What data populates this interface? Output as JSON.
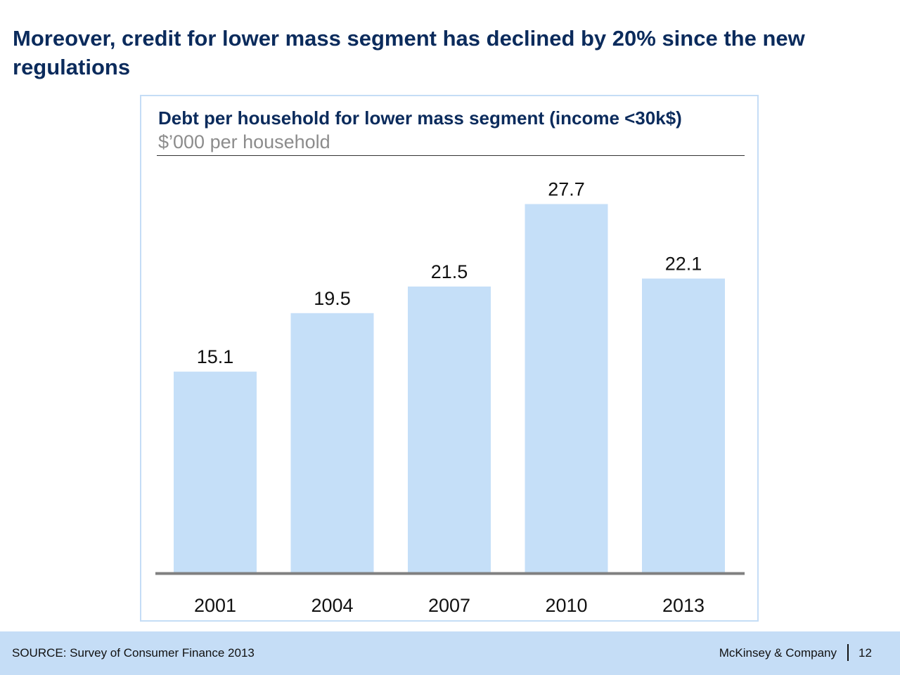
{
  "slide": {
    "title": "Moreover, credit for lower mass segment has declined by 20% since the new regulations"
  },
  "chart_data": {
    "type": "bar",
    "title": "Debt per household for lower mass segment (income <30k$)",
    "subtitle": "$’000 per household",
    "categories": [
      "2001",
      "2004",
      "2007",
      "2010",
      "2013"
    ],
    "values": [
      15.1,
      19.5,
      21.5,
      27.7,
      22.1
    ],
    "value_labels": [
      "15.1",
      "19.5",
      "21.5",
      "27.7",
      "22.1"
    ],
    "xlabel": "",
    "ylabel": "",
    "ylim": [
      0,
      30
    ],
    "grid": false,
    "legend": "none",
    "bar_color": "#c5dff8",
    "axis_color": "#808080"
  },
  "footer": {
    "source": "SOURCE: Survey of Consumer Finance 2013",
    "brand": "McKinsey & Company",
    "page_number": "12"
  },
  "colors": {
    "title": "#0b2b5c",
    "footer_bg": "#c5ddf6",
    "frame_border": "#c5ddf6"
  }
}
